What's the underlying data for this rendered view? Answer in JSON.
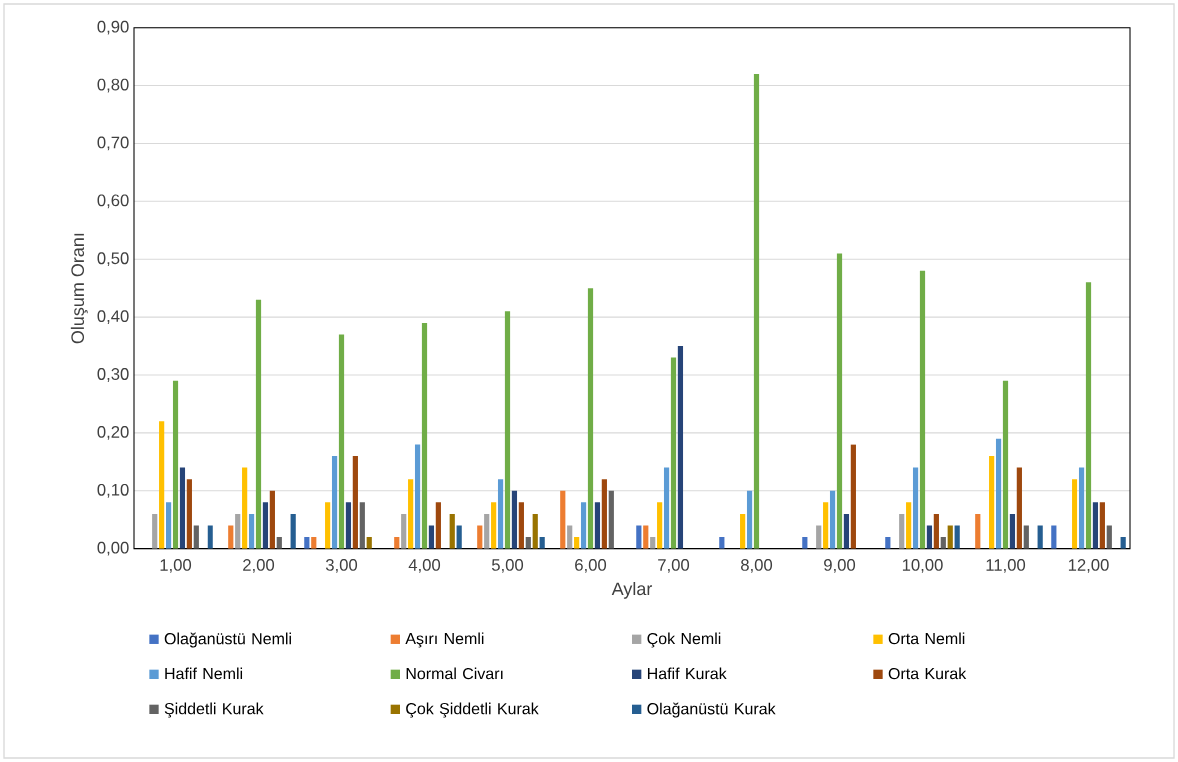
{
  "chart_data": {
    "type": "bar",
    "xlabel": "Aylar",
    "ylabel": "Oluşum Oranı",
    "categories": [
      "1,00",
      "2,00",
      "3,00",
      "4,00",
      "5,00",
      "6,00",
      "7,00",
      "8,00",
      "9,00",
      "10,00",
      "11,00",
      "12,00"
    ],
    "series": [
      {
        "name": "Olağanüstü Nemli",
        "color": "#4472c4",
        "values": [
          0,
          0,
          0.02,
          0,
          0,
          0,
          0.04,
          0.02,
          0.02,
          0.02,
          0,
          0.04
        ]
      },
      {
        "name": "Aşırı Nemli",
        "color": "#ed7d31",
        "values": [
          0,
          0.04,
          0.02,
          0.02,
          0.04,
          0.1,
          0.04,
          0,
          0,
          0,
          0.06,
          0
        ]
      },
      {
        "name": "Çok Nemli",
        "color": "#a5a5a5",
        "values": [
          0.06,
          0.06,
          0,
          0.06,
          0.06,
          0.04,
          0.02,
          0,
          0.04,
          0.06,
          0,
          0
        ]
      },
      {
        "name": "Orta Nemli",
        "color": "#ffc000",
        "values": [
          0.22,
          0.14,
          0.08,
          0.12,
          0.08,
          0.02,
          0.08,
          0.06,
          0.08,
          0.08,
          0.16,
          0.12
        ]
      },
      {
        "name": "Hafif Nemli",
        "color": "#5b9bd5",
        "values": [
          0.08,
          0.06,
          0.16,
          0.18,
          0.12,
          0.08,
          0.14,
          0.1,
          0.1,
          0.14,
          0.19,
          0.14
        ]
      },
      {
        "name": "Normal Civarı",
        "color": "#70ad47",
        "values": [
          0.29,
          0.43,
          0.37,
          0.39,
          0.41,
          0.45,
          0.33,
          0.82,
          0.51,
          0.48,
          0.29,
          0.46
        ]
      },
      {
        "name": "Hafif Kurak",
        "color": "#264478",
        "values": [
          0.14,
          0.08,
          0.08,
          0.04,
          0.1,
          0.08,
          0.35,
          0,
          0.06,
          0.04,
          0.06,
          0.08
        ]
      },
      {
        "name": "Orta Kurak",
        "color": "#9e480e",
        "values": [
          0.12,
          0.1,
          0.16,
          0.08,
          0.08,
          0.12,
          0,
          0,
          0.18,
          0.06,
          0.14,
          0.08
        ]
      },
      {
        "name": "Şiddetli Kurak",
        "color": "#636363",
        "values": [
          0.04,
          0.02,
          0.08,
          0,
          0.02,
          0.1,
          0,
          0,
          0,
          0.02,
          0.04,
          0.04
        ]
      },
      {
        "name": "Çok Şiddetli Kurak",
        "color": "#997300",
        "values": [
          0,
          0,
          0.02,
          0.06,
          0.06,
          0,
          0,
          0,
          0,
          0.04,
          0,
          0
        ]
      },
      {
        "name": "Olağanüstü Kurak",
        "color": "#255e91",
        "values": [
          0.04,
          0.06,
          0,
          0.04,
          0.02,
          0,
          0,
          0,
          0,
          0.04,
          0.04,
          0.02
        ]
      }
    ],
    "ylim": [
      0,
      0.9
    ],
    "yticks": [
      {
        "value": 0,
        "label": "0,00"
      },
      {
        "value": 0.1,
        "label": "0,10"
      },
      {
        "value": 0.2,
        "label": "0,20"
      },
      {
        "value": 0.3,
        "label": "0,30"
      },
      {
        "value": 0.4,
        "label": "0,40"
      },
      {
        "value": 0.5,
        "label": "0,50"
      },
      {
        "value": 0.6,
        "label": "0,60"
      },
      {
        "value": 0.7,
        "label": "0,70"
      },
      {
        "value": 0.8,
        "label": "0,80"
      },
      {
        "value": 0.9,
        "label": "0,90"
      }
    ],
    "grid": "y",
    "legend": "bottom"
  }
}
